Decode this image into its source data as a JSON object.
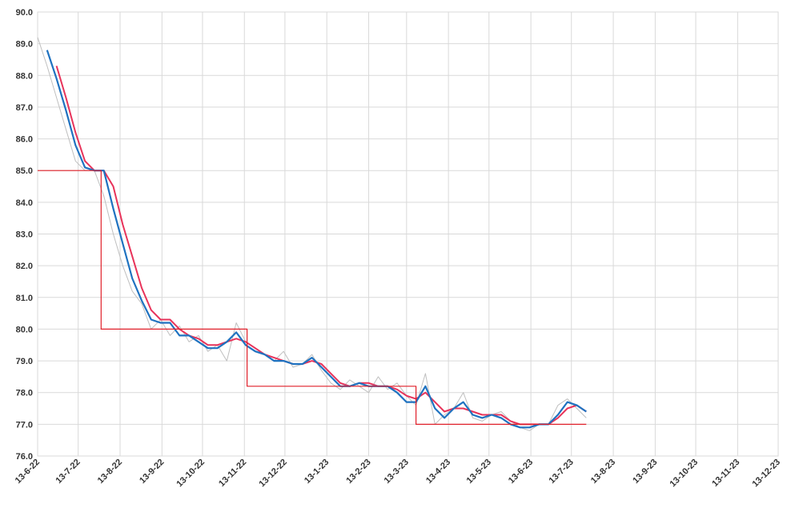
{
  "chart_data": {
    "type": "line",
    "x": [
      "2022-06-13",
      "2022-06-20",
      "2022-06-27",
      "2022-07-04",
      "2022-07-11",
      "2022-07-18",
      "2022-07-25",
      "2022-08-01",
      "2022-08-08",
      "2022-08-15",
      "2022-08-22",
      "2022-08-29",
      "2022-09-05",
      "2022-09-12",
      "2022-09-19",
      "2022-09-26",
      "2022-10-03",
      "2022-10-10",
      "2022-10-17",
      "2022-10-24",
      "2022-10-31",
      "2022-11-07",
      "2022-11-14",
      "2022-11-21",
      "2022-11-28",
      "2022-12-05",
      "2022-12-12",
      "2022-12-19",
      "2022-12-26",
      "2023-01-02",
      "2023-01-09",
      "2023-01-16",
      "2023-01-23",
      "2023-01-30",
      "2023-02-06",
      "2023-02-13",
      "2023-02-20",
      "2023-02-27",
      "2023-03-06",
      "2023-03-13",
      "2023-03-20",
      "2023-03-27",
      "2023-04-03",
      "2023-04-10",
      "2023-04-17",
      "2023-04-24",
      "2023-05-01",
      "2023-05-08",
      "2023-05-15",
      "2023-05-22",
      "2023-05-29",
      "2023-06-05",
      "2023-06-12",
      "2023-06-19",
      "2023-06-26",
      "2023-07-03",
      "2023-07-10",
      "2023-07-17",
      "2023-07-24"
    ],
    "series": [
      {
        "color": "#bfbfbf",
        "width": 1,
        "values": [
          89.2,
          88.3,
          87.3,
          86.3,
          85.3,
          85.0,
          85.0,
          84.2,
          83.0,
          82.0,
          81.2,
          80.8,
          80.0,
          80.3,
          79.8,
          80.1,
          79.6,
          79.8,
          79.3,
          79.5,
          79.0,
          80.2,
          79.6,
          79.4,
          79.2,
          79.0,
          79.3,
          78.8,
          78.9,
          79.2,
          78.7,
          78.3,
          78.1,
          78.4,
          78.2,
          78.0,
          78.5,
          78.1,
          78.3,
          77.9,
          77.6,
          78.6,
          77.0,
          77.3,
          77.5,
          78.0,
          77.2,
          77.1,
          77.3,
          77.4,
          77.1,
          76.9,
          76.8,
          77.0,
          77.0,
          77.6,
          77.8,
          77.5,
          77.2
        ]
      },
      {
        "color": "#e8335a",
        "width": 2,
        "values": [
          null,
          null,
          88.3,
          87.3,
          86.2,
          85.3,
          85.0,
          85.0,
          84.5,
          83.3,
          82.3,
          81.3,
          80.6,
          80.3,
          80.3,
          80.0,
          79.8,
          79.7,
          79.5,
          79.5,
          79.6,
          79.7,
          79.6,
          79.4,
          79.2,
          79.1,
          79.0,
          78.9,
          78.9,
          79.0,
          78.9,
          78.6,
          78.3,
          78.2,
          78.3,
          78.3,
          78.2,
          78.2,
          78.1,
          77.9,
          77.8,
          78.0,
          77.7,
          77.4,
          77.5,
          77.5,
          77.4,
          77.3,
          77.3,
          77.3,
          77.1,
          77.0,
          77.0,
          77.0,
          77.0,
          77.2,
          77.5,
          77.6,
          77.4
        ]
      },
      {
        "color": "#1f72c0",
        "width": 2.2,
        "values": [
          null,
          88.8,
          87.9,
          86.9,
          85.8,
          85.1,
          85.0,
          85.0,
          83.8,
          82.7,
          81.6,
          80.9,
          80.3,
          80.2,
          80.2,
          79.8,
          79.8,
          79.6,
          79.4,
          79.4,
          79.6,
          79.9,
          79.5,
          79.3,
          79.2,
          79.0,
          79.0,
          78.9,
          78.9,
          79.1,
          78.8,
          78.5,
          78.2,
          78.2,
          78.3,
          78.2,
          78.2,
          78.2,
          78.0,
          77.7,
          77.7,
          78.2,
          77.5,
          77.2,
          77.5,
          77.7,
          77.3,
          77.2,
          77.3,
          77.2,
          77.0,
          76.9,
          76.9,
          77.0,
          77.0,
          77.3,
          77.7,
          77.6,
          77.4
        ]
      },
      {
        "color": "#e0202a",
        "width": 1.2,
        "x": [
          "2022-06-13",
          "2022-07-30",
          "2022-07-30",
          "2022-11-15",
          "2022-11-15",
          "2023-03-20",
          "2023-03-20",
          "2023-07-24"
        ],
        "values": [
          85,
          85,
          80,
          80,
          78.2,
          78.2,
          77,
          77
        ]
      }
    ],
    "xlim": [
      "2022-06-13",
      "2023-12-13"
    ],
    "xticks": [
      {
        "value": "2022-06-13",
        "label": "13-6-22"
      },
      {
        "value": "2022-07-13",
        "label": "13-7-22"
      },
      {
        "value": "2022-08-13",
        "label": "13-8-22"
      },
      {
        "value": "2022-09-13",
        "label": "13-9-22"
      },
      {
        "value": "2022-10-13",
        "label": "13-10-22"
      },
      {
        "value": "2022-11-13",
        "label": "13-11-22"
      },
      {
        "value": "2022-12-13",
        "label": "13-12-22"
      },
      {
        "value": "2023-01-13",
        "label": "13-1-23"
      },
      {
        "value": "2023-02-13",
        "label": "13-2-23"
      },
      {
        "value": "2023-03-13",
        "label": "13-3-23"
      },
      {
        "value": "2023-04-13",
        "label": "13-4-23"
      },
      {
        "value": "2023-05-13",
        "label": "13-5-23"
      },
      {
        "value": "2023-06-13",
        "label": "13-6-23"
      },
      {
        "value": "2023-07-13",
        "label": "13-7-23"
      },
      {
        "value": "2023-08-13",
        "label": "13-8-23"
      },
      {
        "value": "2023-09-13",
        "label": "13-9-23"
      },
      {
        "value": "2023-10-13",
        "label": "13-10-23"
      },
      {
        "value": "2023-11-13",
        "label": "13-11-23"
      },
      {
        "value": "2023-12-13",
        "label": "13-12-23"
      }
    ],
    "ylim": [
      76,
      90
    ],
    "yticks": [
      {
        "value": 76,
        "label": "76.0"
      },
      {
        "value": 77,
        "label": "77.0"
      },
      {
        "value": 78,
        "label": "78.0"
      },
      {
        "value": 79,
        "label": "79.0"
      },
      {
        "value": 80,
        "label": "80.0"
      },
      {
        "value": 81,
        "label": "81.0"
      },
      {
        "value": 82,
        "label": "82.0"
      },
      {
        "value": 83,
        "label": "83.0"
      },
      {
        "value": 84,
        "label": "84.0"
      },
      {
        "value": 85,
        "label": "85.0"
      },
      {
        "value": 86,
        "label": "86.0"
      },
      {
        "value": 87,
        "label": "87.0"
      },
      {
        "value": 88,
        "label": "88.0"
      },
      {
        "value": 89,
        "label": "89.0"
      },
      {
        "value": 90,
        "label": "90.0"
      }
    ],
    "grid": true
  }
}
